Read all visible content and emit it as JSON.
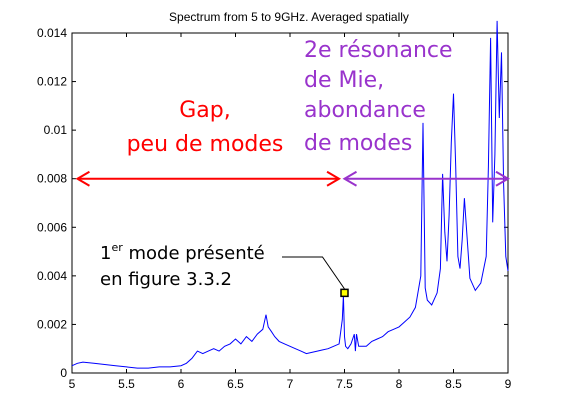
{
  "chart_data": {
    "type": "line",
    "title": "Spectrum from 5 to 9GHz. Averaged spatially",
    "xlabel": "",
    "ylabel": "",
    "xlim": [
      5,
      9
    ],
    "ylim": [
      0,
      0.014
    ],
    "grid": false,
    "xticks": [
      5,
      5.5,
      6,
      6.5,
      7,
      7.5,
      8,
      8.5,
      9
    ],
    "xtick_labels": [
      "5",
      "5.5",
      "6",
      "6.5",
      "7",
      "7.5",
      "8",
      "8.5",
      "9"
    ],
    "yticks": [
      0,
      0.002,
      0.004,
      0.006,
      0.008,
      0.01,
      0.012,
      0.014
    ],
    "ytick_labels": [
      "0",
      "0.002",
      "0.004",
      "0.006",
      "0.008",
      "0.01",
      "0.012",
      "0.014"
    ],
    "series_color": "#0000ff",
    "series": [
      {
        "x": [
          5.0,
          5.05,
          5.1,
          5.2,
          5.3,
          5.4,
          5.5,
          5.6,
          5.7,
          5.8,
          5.9,
          6.0,
          6.05,
          6.1,
          6.15,
          6.2,
          6.25,
          6.3,
          6.35,
          6.4,
          6.45,
          6.5,
          6.55,
          6.6,
          6.65,
          6.7,
          6.75,
          6.78,
          6.8,
          6.83,
          6.86,
          6.9,
          6.95,
          7.0,
          7.05,
          7.1,
          7.15,
          7.2,
          7.25,
          7.3,
          7.35,
          7.4,
          7.45,
          7.48,
          7.49,
          7.5,
          7.51,
          7.53,
          7.56,
          7.59,
          7.6,
          7.61,
          7.63,
          7.7,
          7.75,
          7.8,
          7.85,
          7.9,
          7.95,
          8.0,
          8.05,
          8.1,
          8.15,
          8.2,
          8.22,
          8.24,
          8.26,
          8.3,
          8.35,
          8.38,
          8.4,
          8.42,
          8.44,
          8.46,
          8.48,
          8.5,
          8.52,
          8.54,
          8.56,
          8.58,
          8.6,
          8.65,
          8.7,
          8.75,
          8.8,
          8.82,
          8.84,
          8.86,
          8.88,
          8.9,
          8.92,
          8.94,
          8.96,
          8.98,
          9.0
        ],
        "y": [
          0.0003,
          0.0004,
          0.00045,
          0.0004,
          0.00035,
          0.0003,
          0.00025,
          0.0002,
          0.0002,
          0.00025,
          0.00025,
          0.0003,
          0.0004,
          0.0006,
          0.0009,
          0.0008,
          0.0009,
          0.001,
          0.0009,
          0.0011,
          0.0012,
          0.0014,
          0.0012,
          0.0015,
          0.0013,
          0.0016,
          0.0018,
          0.0024,
          0.0019,
          0.0017,
          0.0015,
          0.0013,
          0.0012,
          0.0011,
          0.001,
          0.0009,
          0.0008,
          0.00085,
          0.0009,
          0.00095,
          0.001,
          0.0011,
          0.0012,
          0.0022,
          0.0032,
          0.0015,
          0.0011,
          0.001,
          0.0012,
          0.0016,
          0.0009,
          0.0016,
          0.0011,
          0.0011,
          0.0013,
          0.0014,
          0.0015,
          0.0017,
          0.0018,
          0.0019,
          0.0021,
          0.0023,
          0.0027,
          0.004,
          0.0103,
          0.0035,
          0.003,
          0.0028,
          0.0033,
          0.0043,
          0.0082,
          0.0058,
          0.0046,
          0.0065,
          0.0095,
          0.0115,
          0.0085,
          0.0048,
          0.0043,
          0.0055,
          0.0072,
          0.0039,
          0.0034,
          0.0037,
          0.0048,
          0.0085,
          0.0138,
          0.0062,
          0.009,
          0.0145,
          0.0105,
          0.0132,
          0.0078,
          0.0048,
          0.0042
        ]
      }
    ],
    "marker": {
      "x": 7.5,
      "y": 0.0033
    },
    "annotations": {
      "gap_line1": "Gap,",
      "gap_line2": "peu de modes",
      "mie_line1": "2e résonance",
      "mie_line2": "de Mie,",
      "mie_line3": "abondance",
      "mie_line4": "de modes",
      "mode_line1_base": "1",
      "mode_line1_sup": "er",
      "mode_line1_rest": " mode présenté",
      "mode_line2": "en figure 3.3.2"
    },
    "colors": {
      "gap": "#ff0000",
      "mie": "#9933cc",
      "series": "#0000ff"
    }
  }
}
